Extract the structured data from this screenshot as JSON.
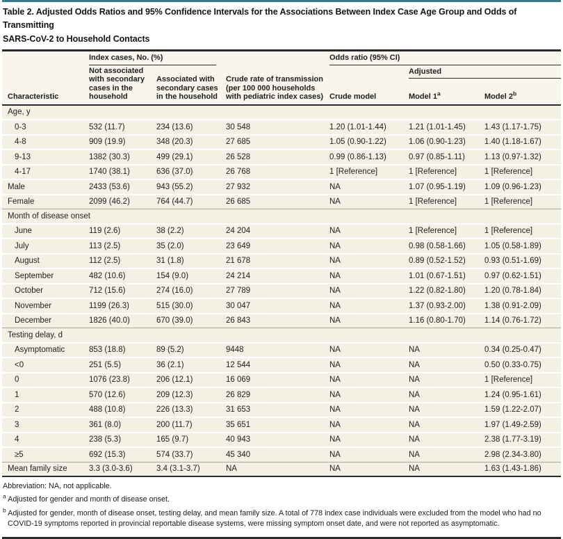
{
  "title": "Table 2. Adjusted Odds Ratios and 95% Confidence Intervals for the Associations Between Index Case Age Group and Odds of Transmitting\nSARS-CoV-2 to Household Contacts",
  "colors": {
    "accent_teal": "#39788e",
    "row_cream": "#f3f1e4",
    "header_cream": "#f7f5ec",
    "rule_dark": "#2a2a2a"
  },
  "header": {
    "characteristic": "Characteristic",
    "index_cases_group": "Index cases, No. (%)",
    "odds_ratio_group": "Odds ratio (95% CI)",
    "adjusted_group": "Adjusted",
    "col_not_associated": "Not associated\nwith secondary\ncases in the\nhousehold",
    "col_associated": "Associated with\nsecondary cases\nin the household",
    "col_crude_rate": "Crude rate of transmission\n(per 100 000 households\nwith pediatric index cases)",
    "col_crude_model": "Crude model",
    "col_model1": "Model 1",
    "col_model1_sup": "a",
    "col_model2": "Model 2",
    "col_model2_sup": "b"
  },
  "table": {
    "rows": [
      {
        "label": "Age, y",
        "section": true
      },
      {
        "label": "0-3",
        "indent": true,
        "cells": [
          "532 (11.7)",
          "234 (13.6)",
          "30 548",
          "1.20 (1.01-1.44)",
          "1.21 (1.01-1.45)",
          "1.43 (1.17-1.75)"
        ]
      },
      {
        "label": "4-8",
        "indent": true,
        "cells": [
          "909 (19.9)",
          "348 (20.3)",
          "27 685",
          "1.05 (0.90-1.22)",
          "1.06 (0.90-1.23)",
          "1.40 (1.18-1.67)"
        ]
      },
      {
        "label": "9-13",
        "indent": true,
        "cells": [
          "1382 (30.3)",
          "499 (29.1)",
          "26 528",
          "0.99 (0.86-1.13)",
          "0.97 (0.85-1.11)",
          "1.13 (0.97-1.32)"
        ]
      },
      {
        "label": "4-17",
        "indent": true,
        "cells": [
          "1740 (38.1)",
          "636 (37.0)",
          "26 768",
          "1 [Reference]",
          "1 [Reference]",
          "1 [Reference]"
        ]
      },
      {
        "label": "Male",
        "cells": [
          "2433 (53.6)",
          "943 (55.2)",
          "27 932",
          "NA",
          "1.07 (0.95-1.19)",
          "1.09 (0.96-1.23)"
        ]
      },
      {
        "label": "Female",
        "cells": [
          "2099 (46.2)",
          "764 (44.7)",
          "26 685",
          "NA",
          "1 [Reference]",
          "1 [Reference]"
        ]
      },
      {
        "label": "Month of disease onset",
        "section": true,
        "boundary": true
      },
      {
        "label": "June",
        "indent": true,
        "cells": [
          "119 (2.6)",
          "38 (2.2)",
          "24 204",
          "NA",
          "1 [Reference]",
          "1 [Reference]"
        ]
      },
      {
        "label": "July",
        "indent": true,
        "cells": [
          "113 (2.5)",
          "35 (2.0)",
          "23 649",
          "NA",
          "0.98 (0.58-1.66)",
          "1.05 (0.58-1.89)"
        ]
      },
      {
        "label": "August",
        "indent": true,
        "cells": [
          "112 (2.5)",
          "31 (1.8)",
          "21 678",
          "NA",
          "0.89 (0.52-1.52)",
          "0.93 (0.51-1.69)"
        ]
      },
      {
        "label": "September",
        "indent": true,
        "cells": [
          "482 (10.6)",
          "154 (9.0)",
          "24 214",
          "NA",
          "1.01 (0.67-1.51)",
          "0.97 (0.62-1.51)"
        ]
      },
      {
        "label": "October",
        "indent": true,
        "cells": [
          "712 (15.6)",
          "274 (16.0)",
          "27 789",
          "NA",
          "1.22 (0.82-1.80)",
          "1.20 (0.78-1.84)"
        ]
      },
      {
        "label": "November",
        "indent": true,
        "cells": [
          "1199 (26.3)",
          "515 (30.0)",
          "30 047",
          "NA",
          "1.37 (0.93-2.00)",
          "1.38 (0.91-2.09)"
        ]
      },
      {
        "label": "December",
        "indent": true,
        "cells": [
          "1826 (40.0)",
          "670 (39.0)",
          "26 843",
          "NA",
          "1.16 (0.80-1.70)",
          "1.14 (0.76-1.72)"
        ]
      },
      {
        "label": "Testing delay, d",
        "section": true,
        "boundary": true
      },
      {
        "label": "Asymptomatic",
        "indent": true,
        "cells": [
          "853 (18.8)",
          "89 (5.2)",
          "9448",
          "NA",
          "NA",
          "0.34 (0.25-0.47)"
        ]
      },
      {
        "label": "<0",
        "indent": true,
        "cells": [
          "251 (5.5)",
          "36 (2.1)",
          "12 544",
          "NA",
          "NA",
          "0.50 (0.33-0.75)"
        ]
      },
      {
        "label": "0",
        "indent": true,
        "cells": [
          "1076 (23.8)",
          "206 (12.1)",
          "16 069",
          "NA",
          "NA",
          "1 [Reference]"
        ]
      },
      {
        "label": "1",
        "indent": true,
        "cells": [
          "570 (12.6)",
          "209 (12.3)",
          "26 829",
          "NA",
          "NA",
          "1.24 (0.95-1.61)"
        ]
      },
      {
        "label": "2",
        "indent": true,
        "cells": [
          "488 (10.8)",
          "226 (13.3)",
          "31 653",
          "NA",
          "NA",
          "1.59 (1.22-2.07)"
        ]
      },
      {
        "label": "3",
        "indent": true,
        "cells": [
          "361 (8.0)",
          "200 (11.7)",
          "35 651",
          "NA",
          "NA",
          "1.97 (1.49-2.59)"
        ]
      },
      {
        "label": "4",
        "indent": true,
        "cells": [
          "238 (5.3)",
          "165 (9.7)",
          "40 943",
          "NA",
          "NA",
          "2.38 (1.77-3.19)"
        ]
      },
      {
        "label": "≥5",
        "indent": true,
        "cells": [
          "692 (15.3)",
          "574 (33.7)",
          "45 340",
          "NA",
          "NA",
          "2.98 (2.34-3.80)"
        ]
      },
      {
        "label": "Mean family size",
        "boundary": true,
        "cells": [
          "3.3 (3.0-3.6)",
          "3.4 (3.1-3.7)",
          "NA",
          "NA",
          "NA",
          "1.63 (1.43-1.86)"
        ]
      }
    ]
  },
  "footnotes": {
    "abbreviation": "Abbreviation: NA, not applicable.",
    "a_sup": "a",
    "a_text": "Adjusted for gender and month of disease onset.",
    "b_sup": "b",
    "b_text": "Adjusted for gender, month of disease onset, testing delay, and mean family size. A total of 778 index case individuals were excluded from the model who had no\nCOVID-19 symptoms reported in provincial reportable disease systems, were missing symptom onset date, and were not reported as asymptomatic."
  }
}
